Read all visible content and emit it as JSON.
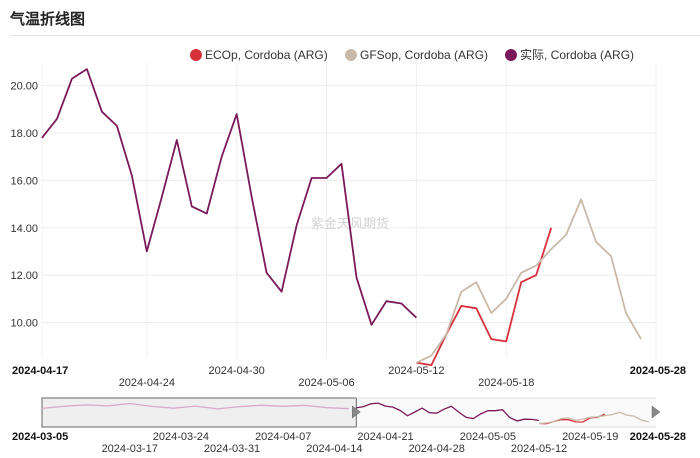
{
  "title": "气温折线图",
  "watermark": "紫金天风期货",
  "chart_data": {
    "type": "line",
    "y_ticks": [
      "10.00",
      "12.00",
      "14.00",
      "16.00",
      "18.00",
      "20.00"
    ],
    "ylim": [
      8.5,
      21
    ],
    "x_range": [
      "2024-04-17",
      "2024-05-28"
    ],
    "x_ticks": [
      {
        "label": "2024-04-17",
        "date": "2024-04-17",
        "row": 0,
        "bold": true
      },
      {
        "label": "2024-04-24",
        "date": "2024-04-24",
        "row": 1,
        "bold": false
      },
      {
        "label": "2024-04-30",
        "date": "2024-04-30",
        "row": 0,
        "bold": false
      },
      {
        "label": "2024-05-06",
        "date": "2024-05-06",
        "row": 1,
        "bold": false
      },
      {
        "label": "2024-05-12",
        "date": "2024-05-12",
        "row": 0,
        "bold": false
      },
      {
        "label": "2024-05-18",
        "date": "2024-05-18",
        "row": 1,
        "bold": false
      },
      {
        "label": "2024-05-28",
        "date": "2024-05-28",
        "row": 0,
        "bold": true
      }
    ],
    "legend_position": "top-right",
    "series": [
      {
        "name": "ECOp, Cordoba (ARG)",
        "color": "#d6303a",
        "points": [
          [
            "2024-05-12",
            8.3
          ],
          [
            "2024-05-13",
            8.2
          ],
          [
            "2024-05-14",
            9.5
          ],
          [
            "2024-05-15",
            10.7
          ],
          [
            "2024-05-16",
            10.6
          ],
          [
            "2024-05-17",
            9.3
          ],
          [
            "2024-05-18",
            9.2
          ],
          [
            "2024-05-19",
            11.7
          ],
          [
            "2024-05-20",
            12.0
          ],
          [
            "2024-05-21",
            14.0
          ]
        ]
      },
      {
        "name": "GFSop, Cordoba (ARG)",
        "color": "#c9b9a8",
        "points": [
          [
            "2024-05-12",
            8.3
          ],
          [
            "2024-05-13",
            8.6
          ],
          [
            "2024-05-14",
            9.5
          ],
          [
            "2024-05-15",
            11.3
          ],
          [
            "2024-05-16",
            11.7
          ],
          [
            "2024-05-17",
            10.4
          ],
          [
            "2024-05-18",
            11.0
          ],
          [
            "2024-05-19",
            12.1
          ],
          [
            "2024-05-20",
            12.4
          ],
          [
            "2024-05-21",
            13.1
          ],
          [
            "2024-05-22",
            13.7
          ],
          [
            "2024-05-23",
            15.2
          ],
          [
            "2024-05-24",
            13.4
          ],
          [
            "2024-05-25",
            12.8
          ],
          [
            "2024-05-26",
            10.4
          ],
          [
            "2024-05-27",
            9.3
          ]
        ]
      },
      {
        "name": "实际, Cordoba (ARG)",
        "color": "#7b1a5a",
        "points": [
          [
            "2024-04-17",
            17.8
          ],
          [
            "2024-04-18",
            18.6
          ],
          [
            "2024-04-19",
            20.3
          ],
          [
            "2024-04-20",
            20.7
          ],
          [
            "2024-04-21",
            18.9
          ],
          [
            "2024-04-22",
            18.3
          ],
          [
            "2024-04-23",
            16.2
          ],
          [
            "2024-04-24",
            13.0
          ],
          [
            "2024-04-25",
            15.3
          ],
          [
            "2024-04-26",
            17.7
          ],
          [
            "2024-04-27",
            14.9
          ],
          [
            "2024-04-28",
            14.6
          ],
          [
            "2024-04-29",
            17.0
          ],
          [
            "2024-04-30",
            18.8
          ],
          [
            "2024-05-01",
            15.3
          ],
          [
            "2024-05-02",
            12.1
          ],
          [
            "2024-05-03",
            11.3
          ],
          [
            "2024-05-04",
            14.1
          ],
          [
            "2024-05-05",
            16.1
          ],
          [
            "2024-05-06",
            16.1
          ],
          [
            "2024-05-07",
            16.7
          ],
          [
            "2024-05-08",
            11.9
          ],
          [
            "2024-05-09",
            9.9
          ],
          [
            "2024-05-10",
            10.9
          ],
          [
            "2024-05-11",
            10.8
          ],
          [
            "2024-05-12",
            10.2
          ]
        ]
      }
    ],
    "navigator": {
      "range": [
        "2024-03-05",
        "2024-05-28"
      ],
      "selected": [
        "2024-04-17",
        "2024-05-28"
      ],
      "ticks": [
        {
          "label": "2024-03-05",
          "date": "2024-03-05",
          "row": 0,
          "bold": true
        },
        {
          "label": "2024-03-17",
          "date": "2024-03-17",
          "row": 1,
          "bold": false
        },
        {
          "label": "2024-03-24",
          "date": "2024-03-24",
          "row": 0,
          "bold": false
        },
        {
          "label": "2024-03-31",
          "date": "2024-03-31",
          "row": 1,
          "bold": false
        },
        {
          "label": "2024-04-07",
          "date": "2024-04-07",
          "row": 0,
          "bold": false
        },
        {
          "label": "2024-04-14",
          "date": "2024-04-14",
          "row": 1,
          "bold": false
        },
        {
          "label": "2024-04-21",
          "date": "2024-04-21",
          "row": 0,
          "bold": false
        },
        {
          "label": "2024-04-28",
          "date": "2024-04-28",
          "row": 1,
          "bold": false
        },
        {
          "label": "2024-05-05",
          "date": "2024-05-05",
          "row": 0,
          "bold": false
        },
        {
          "label": "2024-05-12",
          "date": "2024-05-12",
          "row": 1,
          "bold": false
        },
        {
          "label": "2024-05-19",
          "date": "2024-05-19",
          "row": 0,
          "bold": false
        },
        {
          "label": "2024-05-28",
          "date": "2024-05-28",
          "row": 0,
          "bold": true
        }
      ],
      "history": [
        [
          "2024-03-05",
          17.5
        ],
        [
          "2024-03-08",
          18.8
        ],
        [
          "2024-03-11",
          19.6
        ],
        [
          "2024-03-14",
          19.0
        ],
        [
          "2024-03-17",
          20.5
        ],
        [
          "2024-03-20",
          18.7
        ],
        [
          "2024-03-23",
          17.6
        ],
        [
          "2024-03-26",
          18.9
        ],
        [
          "2024-03-29",
          17.2
        ],
        [
          "2024-04-01",
          18.6
        ],
        [
          "2024-04-04",
          19.4
        ],
        [
          "2024-04-07",
          18.8
        ],
        [
          "2024-04-10",
          19.3
        ],
        [
          "2024-04-13",
          17.9
        ],
        [
          "2024-04-16",
          17.4
        ]
      ]
    }
  }
}
